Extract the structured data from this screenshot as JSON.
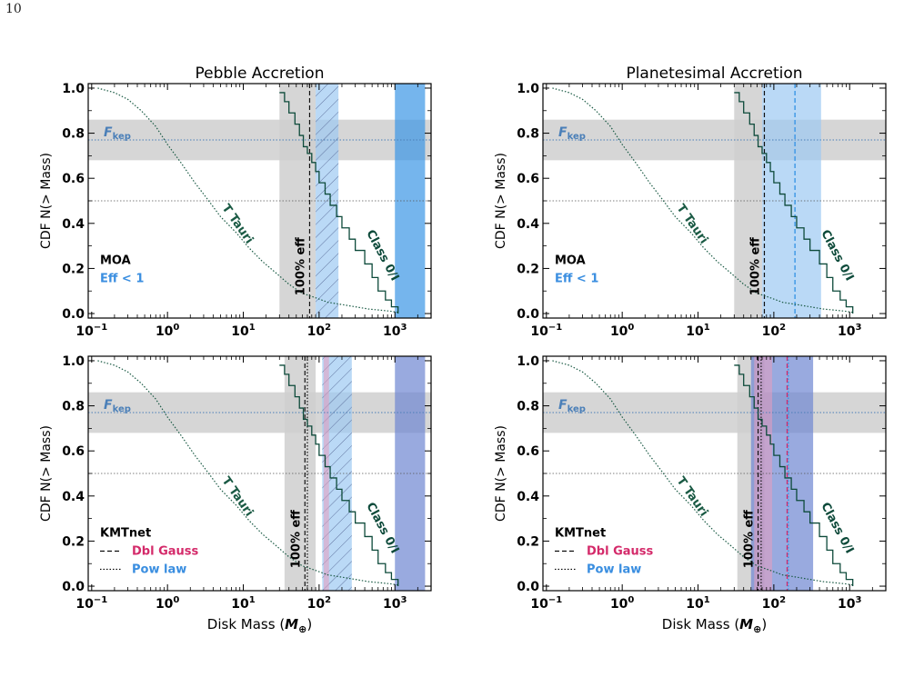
{
  "page": {
    "number": "10"
  },
  "colors": {
    "gray_band": "#cfcfcf",
    "tt_curve": "#1a5a44",
    "class_curve": "#0d4a3a",
    "fkep_line": "#4a7fb8",
    "fkep_text": "#4a7fb8",
    "blue_band": "#3a96e6",
    "light_blue_band": "#9cc9f2",
    "periwinkle_band": "#6e86d2",
    "pink_band": "#e89cbd",
    "dbl_gauss_text": "#d42a6a",
    "pow_law_text": "#3a8ee0"
  },
  "chart_data": [
    {
      "type": "line",
      "title": "Pebble Accretion",
      "xlabel": "",
      "ylabel": "CDF N(> Mass)",
      "xscale": "log",
      "xlim": [
        0.09,
        3000
      ],
      "ylim": [
        -0.02,
        1.02
      ],
      "yticks": [
        "0.0",
        "0.2",
        "0.4",
        "0.6",
        "0.8",
        "1.0"
      ],
      "xticks": [
        {
          "v": 0.1,
          "base": "10",
          "exp": "−1"
        },
        {
          "v": 1,
          "base": "10",
          "exp": "0"
        },
        {
          "v": 10,
          "base": "10",
          "exp": "1"
        },
        {
          "v": 100,
          "base": "10",
          "exp": "2"
        },
        {
          "v": 1000,
          "base": "10",
          "exp": "3"
        }
      ],
      "fkep": {
        "label_main": "F",
        "label_sub": "kep",
        "value": 0.77,
        "range": [
          0.68,
          0.86
        ]
      },
      "median_line": 0.5,
      "series": [
        {
          "x": [
            0.12,
            0.2,
            0.3,
            0.45,
            0.7,
            1.0,
            1.5,
            2.3,
            3.5,
            5,
            8,
            12,
            18,
            27,
            40,
            60,
            90,
            130,
            200,
            300,
            450,
            650,
            900,
            1100
          ],
          "y": [
            1.0,
            0.98,
            0.95,
            0.9,
            0.83,
            0.75,
            0.67,
            0.58,
            0.5,
            0.43,
            0.36,
            0.29,
            0.23,
            0.18,
            0.13,
            0.09,
            0.07,
            0.05,
            0.04,
            0.03,
            0.02,
            0.015,
            0.01,
            0.005
          ]
        },
        {
          "x": [
            30,
            35,
            40,
            48,
            55,
            62,
            70,
            80,
            90,
            100,
            120,
            140,
            170,
            200,
            250,
            300,
            400,
            500,
            600,
            750,
            900,
            1100
          ],
          "y": [
            0.98,
            0.94,
            0.89,
            0.84,
            0.79,
            0.74,
            0.71,
            0.67,
            0.63,
            0.58,
            0.53,
            0.48,
            0.43,
            0.38,
            0.33,
            0.28,
            0.22,
            0.16,
            0.1,
            0.06,
            0.03,
            0.0
          ]
        }
      ],
      "curve_labels": {
        "tt": "T Tauri",
        "class": "Class 0/I",
        "eff": "100% eff"
      },
      "gray_band_x": [
        30,
        90
      ],
      "eff_lines": [
        {
          "x": 75,
          "style": "dashed"
        }
      ],
      "bands": [
        {
          "x": [
            90,
            180
          ],
          "color": "light_blue_band",
          "hatch": true
        },
        {
          "x": [
            1000,
            2500
          ],
          "color": "blue_band",
          "hatch": false
        }
      ],
      "vlines": [],
      "legend": [
        {
          "text": "MOA",
          "color": "black",
          "style": ""
        },
        {
          "text": "Eff < 1",
          "color": "pow_law_text",
          "style": ""
        }
      ]
    },
    {
      "type": "line",
      "title": "Planetesimal Accretion",
      "xlabel": "",
      "ylabel": "CDF N(> Mass)",
      "xscale": "log",
      "xlim": [
        0.09,
        3000
      ],
      "ylim": [
        -0.02,
        1.02
      ],
      "yticks": [
        "0.0",
        "0.2",
        "0.4",
        "0.6",
        "0.8",
        "1.0"
      ],
      "xticks": [
        {
          "v": 0.1,
          "base": "10",
          "exp": "−1"
        },
        {
          "v": 1,
          "base": "10",
          "exp": "0"
        },
        {
          "v": 10,
          "base": "10",
          "exp": "1"
        },
        {
          "v": 100,
          "base": "10",
          "exp": "2"
        },
        {
          "v": 1000,
          "base": "10",
          "exp": "3"
        }
      ],
      "fkep": {
        "label_main": "F",
        "label_sub": "kep",
        "value": 0.77,
        "range": [
          0.68,
          0.86
        ]
      },
      "median_line": 0.5,
      "series": [
        {
          "x": [
            0.12,
            0.2,
            0.3,
            0.45,
            0.7,
            1.0,
            1.5,
            2.3,
            3.5,
            5,
            8,
            12,
            18,
            27,
            40,
            60,
            90,
            130,
            200,
            300,
            450,
            650,
            900,
            1100
          ],
          "y": [
            1.0,
            0.98,
            0.95,
            0.9,
            0.83,
            0.75,
            0.67,
            0.58,
            0.5,
            0.43,
            0.36,
            0.29,
            0.23,
            0.18,
            0.13,
            0.09,
            0.07,
            0.05,
            0.04,
            0.03,
            0.02,
            0.015,
            0.01,
            0.005
          ]
        },
        {
          "x": [
            30,
            35,
            40,
            48,
            55,
            62,
            70,
            80,
            90,
            100,
            120,
            140,
            170,
            200,
            250,
            300,
            400,
            500,
            600,
            750,
            900,
            1100
          ],
          "y": [
            0.98,
            0.94,
            0.89,
            0.84,
            0.79,
            0.74,
            0.71,
            0.67,
            0.63,
            0.58,
            0.53,
            0.48,
            0.43,
            0.38,
            0.33,
            0.28,
            0.22,
            0.16,
            0.1,
            0.06,
            0.03,
            0.0
          ]
        }
      ],
      "curve_labels": {
        "tt": "T Tauri",
        "class": "Class 0/I",
        "eff": "100% eff"
      },
      "gray_band_x": [
        30,
        70
      ],
      "eff_lines": [
        {
          "x": 75,
          "style": "dashed"
        }
      ],
      "bands": [
        {
          "x": [
            70,
            420
          ],
          "color": "light_blue_band",
          "hatch": false
        }
      ],
      "vlines": [
        {
          "x": 190,
          "color": "blue_band",
          "style": "dashed"
        }
      ],
      "legend": [
        {
          "text": "MOA",
          "color": "black",
          "style": ""
        },
        {
          "text": "Eff < 1",
          "color": "pow_law_text",
          "style": ""
        }
      ]
    },
    {
      "type": "line",
      "title": "",
      "xlabel": "Disk Mass",
      "ylabel": "CDF N(> Mass)",
      "xscale": "log",
      "xlim": [
        0.09,
        3000
      ],
      "ylim": [
        -0.02,
        1.02
      ],
      "yticks": [
        "0.0",
        "0.2",
        "0.4",
        "0.6",
        "0.8",
        "1.0"
      ],
      "xticks": [
        {
          "v": 0.1,
          "base": "10",
          "exp": "−1"
        },
        {
          "v": 1,
          "base": "10",
          "exp": "0"
        },
        {
          "v": 10,
          "base": "10",
          "exp": "1"
        },
        {
          "v": 100,
          "base": "10",
          "exp": "2"
        },
        {
          "v": 1000,
          "base": "10",
          "exp": "3"
        }
      ],
      "fkep": {
        "label_main": "F",
        "label_sub": "kep",
        "value": 0.77,
        "range": [
          0.68,
          0.86
        ]
      },
      "median_line": 0.5,
      "series": [
        {
          "x": [
            0.12,
            0.2,
            0.3,
            0.45,
            0.7,
            1.0,
            1.5,
            2.3,
            3.5,
            5,
            8,
            12,
            18,
            27,
            40,
            60,
            90,
            130,
            200,
            300,
            450,
            650,
            900,
            1100
          ],
          "y": [
            1.0,
            0.98,
            0.95,
            0.9,
            0.83,
            0.75,
            0.67,
            0.58,
            0.5,
            0.43,
            0.36,
            0.29,
            0.23,
            0.18,
            0.13,
            0.09,
            0.07,
            0.05,
            0.04,
            0.03,
            0.02,
            0.015,
            0.01,
            0.005
          ]
        },
        {
          "x": [
            30,
            35,
            40,
            48,
            55,
            62,
            70,
            80,
            90,
            100,
            120,
            140,
            170,
            200,
            250,
            300,
            400,
            500,
            600,
            750,
            900,
            1100
          ],
          "y": [
            0.98,
            0.94,
            0.89,
            0.84,
            0.79,
            0.74,
            0.71,
            0.67,
            0.63,
            0.58,
            0.53,
            0.48,
            0.43,
            0.38,
            0.33,
            0.28,
            0.22,
            0.16,
            0.1,
            0.06,
            0.03,
            0.0
          ]
        }
      ],
      "curve_labels": {
        "tt": "T Tauri",
        "class": "Class 0/I",
        "eff": "100% eff"
      },
      "gray_band_x": [
        35,
        90
      ],
      "eff_lines": [
        {
          "x": 65,
          "style": "dashed"
        },
        {
          "x": 70,
          "style": "dotted"
        }
      ],
      "bands": [
        {
          "x": [
            110,
            270
          ],
          "color": "light_blue_band",
          "hatch": true
        },
        {
          "x": [
            115,
            135
          ],
          "color": "pink_band",
          "hatch": false
        },
        {
          "x": [
            1000,
            2500
          ],
          "color": "periwinkle_band",
          "hatch": false
        }
      ],
      "vlines": [],
      "legend": [
        {
          "text": "KMTnet",
          "color": "black",
          "style": ""
        },
        {
          "text": "Dbl Gauss",
          "color": "dbl_gauss_text",
          "style": "dashed"
        },
        {
          "text": "Pow law",
          "color": "pow_law_text",
          "style": "dotted"
        }
      ]
    },
    {
      "type": "line",
      "title": "",
      "xlabel": "Disk Mass",
      "ylabel": "CDF N(> Mass)",
      "xscale": "log",
      "xlim": [
        0.09,
        3000
      ],
      "ylim": [
        -0.02,
        1.02
      ],
      "yticks": [
        "0.0",
        "0.2",
        "0.4",
        "0.6",
        "0.8",
        "1.0"
      ],
      "xticks": [
        {
          "v": 0.1,
          "base": "10",
          "exp": "−1"
        },
        {
          "v": 1,
          "base": "10",
          "exp": "0"
        },
        {
          "v": 10,
          "base": "10",
          "exp": "1"
        },
        {
          "v": 100,
          "base": "10",
          "exp": "2"
        },
        {
          "v": 1000,
          "base": "10",
          "exp": "3"
        }
      ],
      "fkep": {
        "label_main": "F",
        "label_sub": "kep",
        "value": 0.77,
        "range": [
          0.68,
          0.86
        ]
      },
      "median_line": 0.5,
      "series": [
        {
          "x": [
            0.12,
            0.2,
            0.3,
            0.45,
            0.7,
            1.0,
            1.5,
            2.3,
            3.5,
            5,
            8,
            12,
            18,
            27,
            40,
            60,
            90,
            130,
            200,
            300,
            450,
            650,
            900,
            1100
          ],
          "y": [
            1.0,
            0.98,
            0.95,
            0.9,
            0.83,
            0.75,
            0.67,
            0.58,
            0.5,
            0.43,
            0.36,
            0.29,
            0.23,
            0.18,
            0.13,
            0.09,
            0.07,
            0.05,
            0.04,
            0.03,
            0.02,
            0.015,
            0.01,
            0.005
          ]
        },
        {
          "x": [
            30,
            35,
            40,
            48,
            55,
            62,
            70,
            80,
            90,
            100,
            120,
            140,
            170,
            200,
            250,
            300,
            400,
            500,
            600,
            750,
            900,
            1100
          ],
          "y": [
            0.98,
            0.94,
            0.89,
            0.84,
            0.79,
            0.74,
            0.71,
            0.67,
            0.63,
            0.58,
            0.53,
            0.48,
            0.43,
            0.38,
            0.33,
            0.28,
            0.22,
            0.16,
            0.1,
            0.06,
            0.03,
            0.0
          ]
        }
      ],
      "curve_labels": {
        "tt": "T Tauri",
        "class": "Class 0/I",
        "eff": "100% eff"
      },
      "gray_band_x": [
        33,
        75
      ],
      "eff_lines": [
        {
          "x": 62,
          "style": "dashed"
        },
        {
          "x": 68,
          "style": "dotted"
        }
      ],
      "bands": [
        {
          "x": [
            50,
            330
          ],
          "color": "periwinkle_band",
          "hatch": false
        },
        {
          "x": [
            55,
            95
          ],
          "color": "pink_band",
          "hatch": false
        }
      ],
      "vlines": [
        {
          "x": 150,
          "color": "dbl_gauss_text",
          "style": "dashed"
        },
        {
          "x": 155,
          "color": "blue_band",
          "style": "dotted"
        }
      ],
      "legend": [
        {
          "text": "KMTnet",
          "color": "black",
          "style": ""
        },
        {
          "text": "Dbl Gauss",
          "color": "dbl_gauss_text",
          "style": "dashed"
        },
        {
          "text": "Pow law",
          "color": "pow_law_text",
          "style": "dotted"
        }
      ]
    }
  ],
  "xlabel_unit": {
    "main": "M",
    "sub": "⊕"
  }
}
